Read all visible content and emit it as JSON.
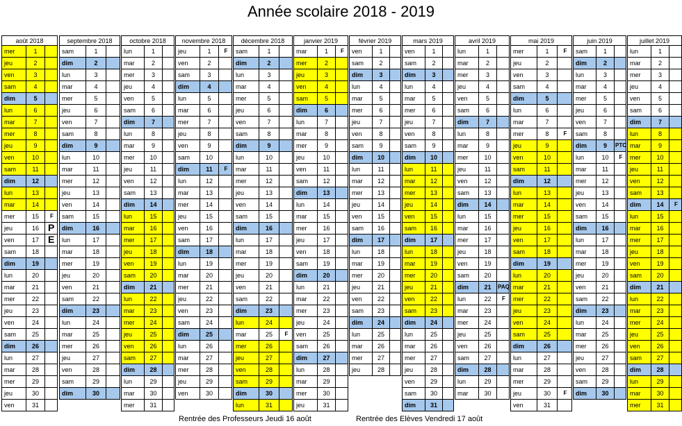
{
  "title": "Année scolaire 2018 - 2019",
  "colors": {
    "holiday": "#ffff00",
    "sunday": "#a6c8ec",
    "border": "#000000"
  },
  "months": [
    {
      "name": "août 2018",
      "first_dow": 2,
      "days": 31,
      "start_day": 1,
      "holiday_days": [
        1,
        2,
        3,
        4,
        6,
        7,
        8,
        9,
        10,
        11,
        13,
        14
      ],
      "exceptions": {
        "15": "F"
      }
    },
    {
      "name": "septembre 2018",
      "first_dow": 5,
      "days": 30,
      "start_day": 1,
      "holiday_days": [],
      "exceptions": {}
    },
    {
      "name": "octobre 2018",
      "first_dow": 0,
      "days": 31,
      "start_day": 1,
      "holiday_days": [
        15,
        16,
        17,
        18,
        19,
        20,
        22,
        23,
        24,
        25,
        26,
        27
      ],
      "exceptions": {}
    },
    {
      "name": "novembre 2018",
      "first_dow": 3,
      "days": 30,
      "start_day": 1,
      "holiday_days": [],
      "exceptions": {
        "1": "F",
        "11": "F"
      }
    },
    {
      "name": "décembre 2018",
      "first_dow": 5,
      "days": 31,
      "start_day": 1,
      "holiday_days": [
        24,
        26,
        27,
        28,
        29,
        31
      ],
      "exceptions": {
        "25": "F"
      }
    },
    {
      "name": "janvier 2019",
      "first_dow": 1,
      "days": 31,
      "start_day": 1,
      "holiday_days": [
        2,
        3,
        4,
        5
      ],
      "exceptions": {
        "1": "F"
      }
    },
    {
      "name": "février 2019",
      "first_dow": 4,
      "days": 28,
      "start_day": 1,
      "holiday_days": [],
      "exceptions": {}
    },
    {
      "name": "mars 2019",
      "first_dow": 4,
      "days": 31,
      "start_day": 1,
      "holiday_days": [
        11,
        12,
        13,
        14,
        15,
        16,
        18,
        19,
        20,
        21,
        22,
        23
      ],
      "exceptions": {}
    },
    {
      "name": "avril 2019",
      "first_dow": 0,
      "days": 30,
      "start_day": 1,
      "holiday_days": [],
      "exceptions": {
        "21": "PAQ",
        "22": "F"
      }
    },
    {
      "name": "mai 2019",
      "first_dow": 2,
      "days": 31,
      "start_day": 1,
      "holiday_days": [
        9,
        10,
        11,
        13,
        14,
        15,
        16,
        17,
        18,
        20,
        21,
        22,
        23,
        24,
        25
      ],
      "exceptions": {
        "1": "F",
        "8": "F",
        "30": "F"
      }
    },
    {
      "name": "juin 2019",
      "first_dow": 5,
      "days": 30,
      "start_day": 1,
      "holiday_days": [],
      "exceptions": {
        "9": "PTC",
        "10": "F"
      }
    },
    {
      "name": "juillet 2019",
      "first_dow": 0,
      "days": 31,
      "start_day": 1,
      "holiday_days": [
        8,
        9,
        10,
        11,
        12,
        13,
        15,
        16,
        17,
        18,
        19,
        20,
        22,
        23,
        24,
        25,
        26,
        27,
        29,
        30,
        31
      ],
      "exceptions": {
        "14": "F"
      }
    }
  ],
  "day_names": [
    "lun",
    "mar",
    "mer",
    "jeu",
    "ven",
    "sam",
    "dim"
  ],
  "august_letters": {
    "16": "P",
    "17": "E"
  },
  "footer": {
    "teachers": "Rentrée des Professeurs Jeudi 16 août",
    "students": "Rentrée des Elèves Vendredi 17 août"
  }
}
